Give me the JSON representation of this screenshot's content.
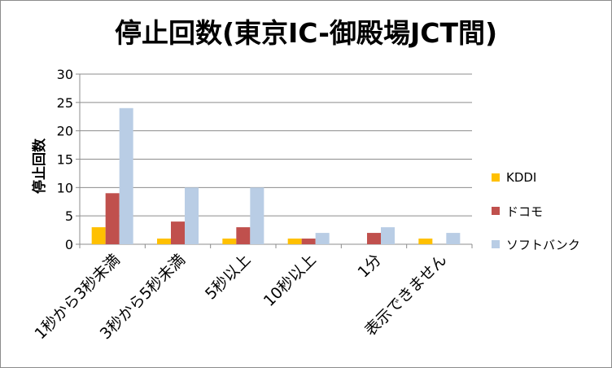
{
  "chart_data": {
    "type": "bar",
    "title": "停止回数(東京IC-御殿場JCT間)",
    "ylabel": "停止回数",
    "xlabel": "",
    "ylim": [
      0,
      30
    ],
    "yticks": [
      0,
      5,
      10,
      15,
      20,
      25,
      30
    ],
    "grid": true,
    "legend_position": "right",
    "categories": [
      "1秒から3秒未満",
      "3秒から5秒未満",
      "5秒以上",
      "10秒以上",
      "1分",
      "表示できません"
    ],
    "series": [
      {
        "name": "KDDI",
        "color": "#ffc000",
        "values": [
          3,
          1,
          1,
          1,
          0,
          1
        ]
      },
      {
        "name": "ドコモ",
        "color": "#c0504d",
        "values": [
          9,
          4,
          3,
          1,
          2,
          0
        ]
      },
      {
        "name": "ソフトバンク",
        "color": "#b9cde5",
        "values": [
          24,
          10,
          10,
          2,
          3,
          2
        ]
      }
    ]
  }
}
